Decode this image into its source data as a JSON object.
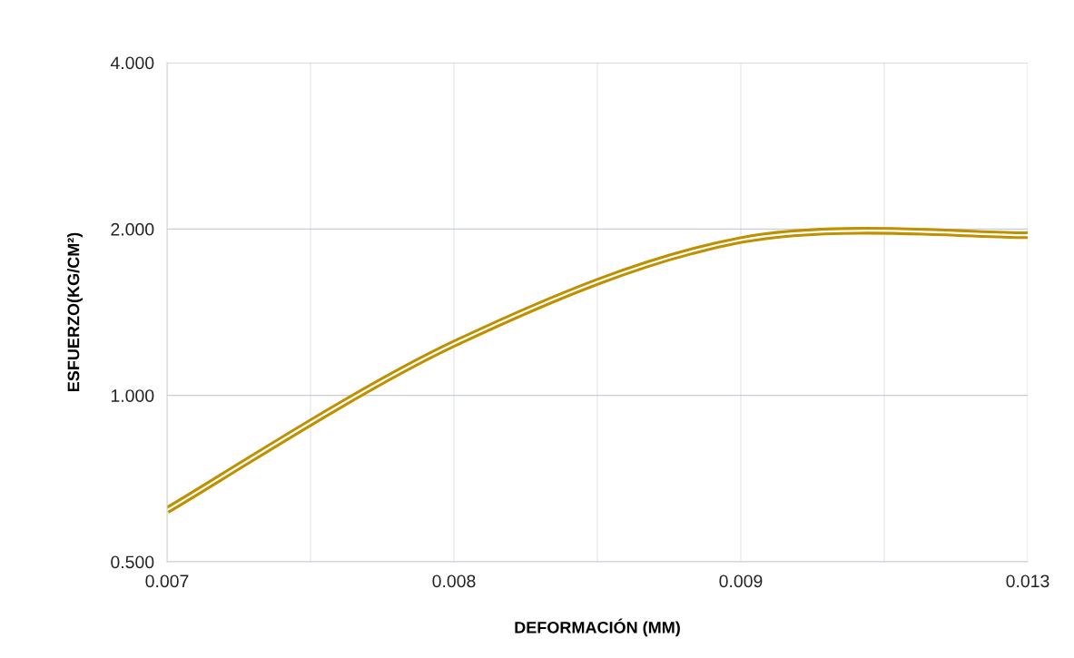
{
  "chart_data": {
    "type": "line",
    "xlabel": "DEFORMACIÓN (MM)",
    "ylabel": "ESFUERZO(KG/CM²)",
    "categories": [
      "0.007",
      "0.008",
      "0.009",
      "0.013"
    ],
    "series": [
      {
        "color": "#bf9000",
        "values": [
          0.62,
          1.24,
          1.91,
          1.95
        ]
      }
    ],
    "log": "y",
    "ylim": [
      0.5,
      4
    ],
    "yticks": [
      {
        "value": 0.5,
        "label": "0.500"
      },
      {
        "value": 1,
        "label": "1.000"
      },
      {
        "value": 2,
        "label": "2.000"
      },
      {
        "value": 4,
        "label": "4.000"
      }
    ],
    "grid": true,
    "line_style": "solid",
    "marker": "none"
  }
}
